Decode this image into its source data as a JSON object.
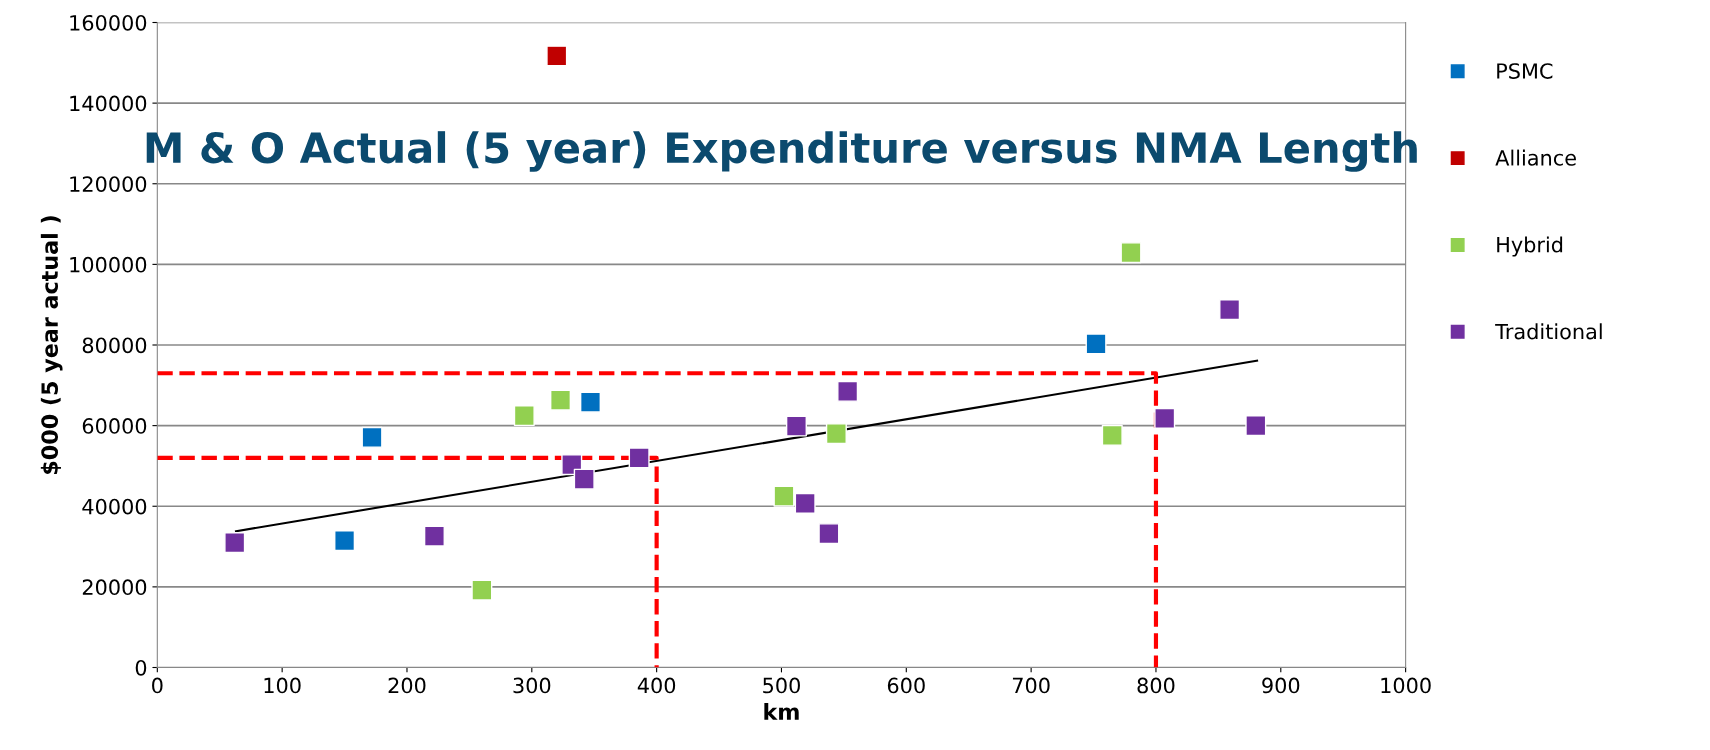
{
  "chart_data": {
    "type": "scatter",
    "title": "M & O Actual (5 year) Expenditure versus NMA Length",
    "xlabel": "km",
    "ylabel": "$000 (5 year actual )",
    "xlim": [
      0,
      1000
    ],
    "xticks": [
      0,
      100,
      200,
      300,
      400,
      500,
      600,
      700,
      800,
      900,
      1000
    ],
    "ylim": [
      0,
      160000
    ],
    "yticks": [
      0,
      20000,
      40000,
      60000,
      80000,
      100000,
      120000,
      140000,
      160000
    ],
    "grid": "y",
    "legend": "right",
    "marker": "square",
    "series": [
      {
        "name": "PSMC",
        "color": "#0070c0",
        "x": [
          150,
          172,
          347,
          752
        ],
        "values": [
          31500,
          57100,
          65800,
          80300
        ]
      },
      {
        "name": "Alliance",
        "color": "#c00000",
        "x": [
          320
        ],
        "values": [
          151700
        ]
      },
      {
        "name": "Hybrid",
        "color": "#92d050",
        "x": [
          260,
          294,
          323,
          502,
          544,
          765,
          780
        ],
        "values": [
          19200,
          62500,
          66300,
          42500,
          58000,
          57600,
          102900
        ]
      },
      {
        "name": "Traditional",
        "color": "#7030a0",
        "x": [
          62,
          222,
          332,
          342,
          386,
          512,
          519,
          538,
          553,
          807,
          859,
          880
        ],
        "values": [
          31000,
          32600,
          50300,
          46700,
          52000,
          59900,
          40700,
          33200,
          68500,
          61800,
          88800,
          60000
        ]
      },
      {
        "type": "line",
        "color": "#000000",
        "line_style": "solid",
        "marker": "none",
        "x": [
          63,
          881
        ],
        "values": [
          33800,
          76100
        ]
      },
      {
        "type": "line",
        "color": "#ff0000",
        "line_style": "dashed",
        "marker": "none",
        "x": [
          0,
          400,
          400
        ],
        "values": [
          52000,
          52000,
          0
        ]
      },
      {
        "type": "line",
        "color": "#ff0000",
        "line_style": "dashed",
        "marker": "none",
        "x": [
          0,
          800,
          800
        ],
        "values": [
          73000,
          73000,
          0
        ]
      }
    ]
  }
}
